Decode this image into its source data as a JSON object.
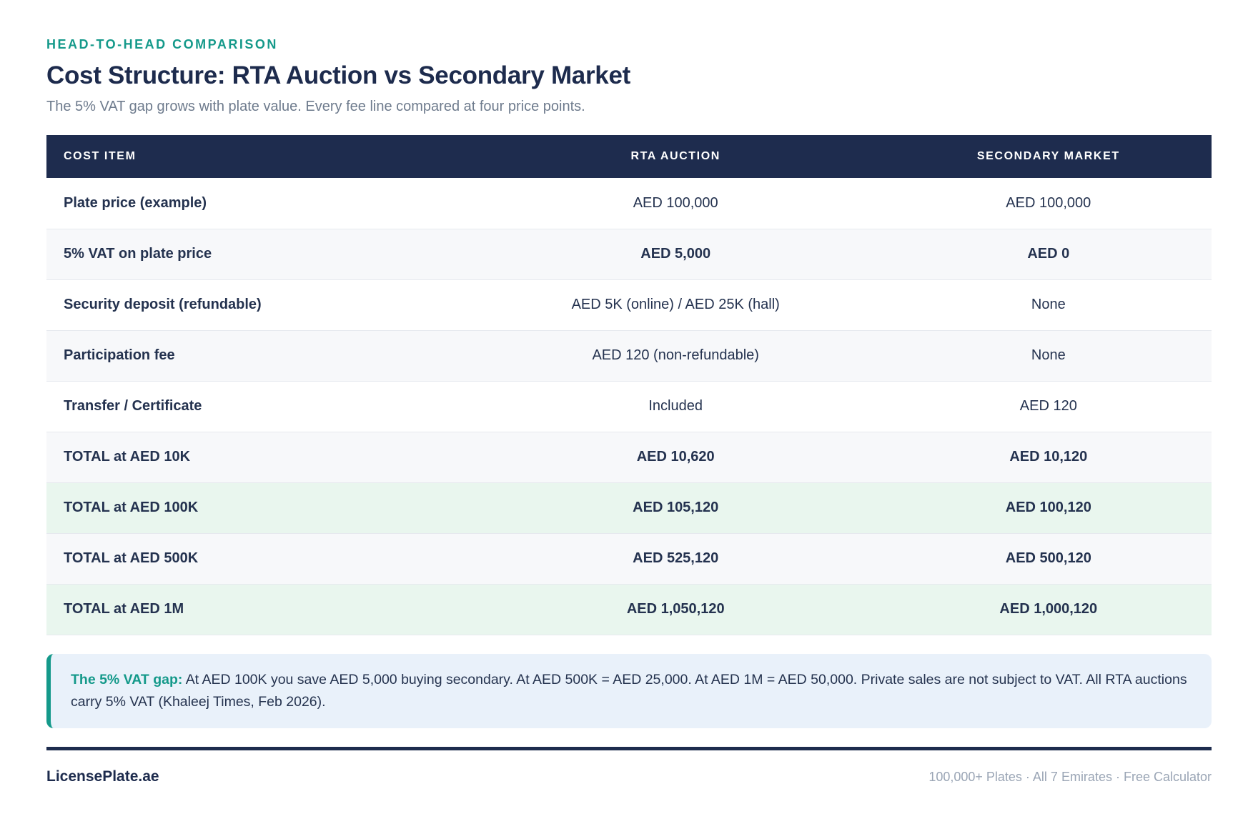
{
  "page": {
    "eyebrow": "HEAD-TO-HEAD COMPARISON",
    "title": "Cost Structure: RTA Auction vs Secondary Market",
    "subtitle": "The 5% VAT gap grows with plate value. Every fee line compared at four price points."
  },
  "colors": {
    "header_navy": "#1e2c4e",
    "accent_teal": "#14998a",
    "value_gold": "#bf8c2c",
    "value_teal": "#0f9b8a",
    "row_gray": "#f7f8fa",
    "row_green": "#e9f6ee",
    "callout_blue": "#e9f1fa"
  },
  "table": {
    "columns": [
      "COST ITEM",
      "RTA AUCTION",
      "SECONDARY MARKET"
    ],
    "rows": [
      {
        "item": "Plate price (example)",
        "rta": "AED 100,000",
        "secondary": "AED 100,000"
      },
      {
        "item": "5% VAT on plate price",
        "rta": "AED 5,000",
        "secondary": "AED 0"
      },
      {
        "item": "Security deposit (refundable)",
        "rta": "AED 5K (online) / AED 25K (hall)",
        "secondary": "None"
      },
      {
        "item": "Participation fee",
        "rta": "AED 120 (non-refundable)",
        "secondary": "None"
      },
      {
        "item": "Transfer / Certificate",
        "rta": "Included",
        "secondary": "AED 120"
      },
      {
        "item": "TOTAL at AED 10K",
        "rta": "AED 10,620",
        "secondary": "AED 10,120"
      },
      {
        "item": "TOTAL at AED 100K",
        "rta": "AED 105,120",
        "secondary": "AED 100,120"
      },
      {
        "item": "TOTAL at AED 500K",
        "rta": "AED 525,120",
        "secondary": "AED 500,120"
      },
      {
        "item": "TOTAL at AED 1M",
        "rta": "AED 1,050,120",
        "secondary": "AED 1,000,120"
      }
    ]
  },
  "callout": {
    "label": "The 5% VAT gap:",
    "text": " At AED 100K you save AED 5,000 buying secondary. At AED 500K = AED 25,000. At AED 1M = AED 50,000. Private sales are not subject to VAT. All RTA auctions carry 5% VAT (Khaleej Times, Feb 2026)."
  },
  "footer": {
    "brand": "LicensePlate.ae",
    "tagline": "100,000+ Plates · All 7 Emirates · Free Calculator"
  }
}
